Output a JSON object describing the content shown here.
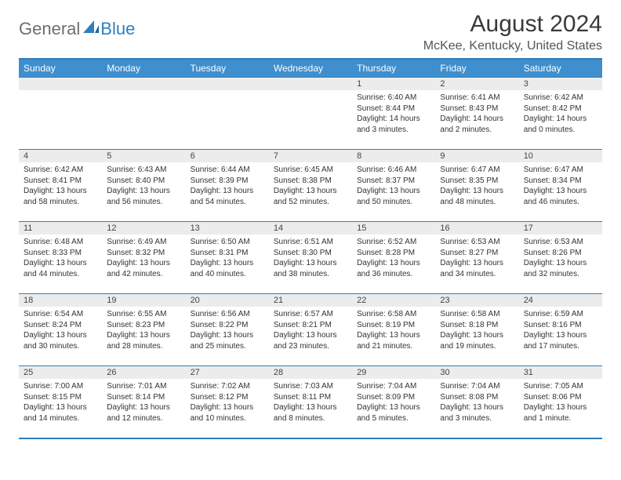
{
  "logo": {
    "general": "General",
    "blue": "Blue"
  },
  "title": "August 2024",
  "location": "McKee, Kentucky, United States",
  "colors": {
    "header_bg": "#3f8fce",
    "border": "#2f7fbf",
    "daynum_bg": "#ececec",
    "text": "#333333"
  },
  "weekdays": [
    "Sunday",
    "Monday",
    "Tuesday",
    "Wednesday",
    "Thursday",
    "Friday",
    "Saturday"
  ],
  "weeks": [
    [
      {
        "n": "",
        "sr": "",
        "ss": "",
        "dl": ""
      },
      {
        "n": "",
        "sr": "",
        "ss": "",
        "dl": ""
      },
      {
        "n": "",
        "sr": "",
        "ss": "",
        "dl": ""
      },
      {
        "n": "",
        "sr": "",
        "ss": "",
        "dl": ""
      },
      {
        "n": "1",
        "sr": "Sunrise: 6:40 AM",
        "ss": "Sunset: 8:44 PM",
        "dl": "Daylight: 14 hours and 3 minutes."
      },
      {
        "n": "2",
        "sr": "Sunrise: 6:41 AM",
        "ss": "Sunset: 8:43 PM",
        "dl": "Daylight: 14 hours and 2 minutes."
      },
      {
        "n": "3",
        "sr": "Sunrise: 6:42 AM",
        "ss": "Sunset: 8:42 PM",
        "dl": "Daylight: 14 hours and 0 minutes."
      }
    ],
    [
      {
        "n": "4",
        "sr": "Sunrise: 6:42 AM",
        "ss": "Sunset: 8:41 PM",
        "dl": "Daylight: 13 hours and 58 minutes."
      },
      {
        "n": "5",
        "sr": "Sunrise: 6:43 AM",
        "ss": "Sunset: 8:40 PM",
        "dl": "Daylight: 13 hours and 56 minutes."
      },
      {
        "n": "6",
        "sr": "Sunrise: 6:44 AM",
        "ss": "Sunset: 8:39 PM",
        "dl": "Daylight: 13 hours and 54 minutes."
      },
      {
        "n": "7",
        "sr": "Sunrise: 6:45 AM",
        "ss": "Sunset: 8:38 PM",
        "dl": "Daylight: 13 hours and 52 minutes."
      },
      {
        "n": "8",
        "sr": "Sunrise: 6:46 AM",
        "ss": "Sunset: 8:37 PM",
        "dl": "Daylight: 13 hours and 50 minutes."
      },
      {
        "n": "9",
        "sr": "Sunrise: 6:47 AM",
        "ss": "Sunset: 8:35 PM",
        "dl": "Daylight: 13 hours and 48 minutes."
      },
      {
        "n": "10",
        "sr": "Sunrise: 6:47 AM",
        "ss": "Sunset: 8:34 PM",
        "dl": "Daylight: 13 hours and 46 minutes."
      }
    ],
    [
      {
        "n": "11",
        "sr": "Sunrise: 6:48 AM",
        "ss": "Sunset: 8:33 PM",
        "dl": "Daylight: 13 hours and 44 minutes."
      },
      {
        "n": "12",
        "sr": "Sunrise: 6:49 AM",
        "ss": "Sunset: 8:32 PM",
        "dl": "Daylight: 13 hours and 42 minutes."
      },
      {
        "n": "13",
        "sr": "Sunrise: 6:50 AM",
        "ss": "Sunset: 8:31 PM",
        "dl": "Daylight: 13 hours and 40 minutes."
      },
      {
        "n": "14",
        "sr": "Sunrise: 6:51 AM",
        "ss": "Sunset: 8:30 PM",
        "dl": "Daylight: 13 hours and 38 minutes."
      },
      {
        "n": "15",
        "sr": "Sunrise: 6:52 AM",
        "ss": "Sunset: 8:28 PM",
        "dl": "Daylight: 13 hours and 36 minutes."
      },
      {
        "n": "16",
        "sr": "Sunrise: 6:53 AM",
        "ss": "Sunset: 8:27 PM",
        "dl": "Daylight: 13 hours and 34 minutes."
      },
      {
        "n": "17",
        "sr": "Sunrise: 6:53 AM",
        "ss": "Sunset: 8:26 PM",
        "dl": "Daylight: 13 hours and 32 minutes."
      }
    ],
    [
      {
        "n": "18",
        "sr": "Sunrise: 6:54 AM",
        "ss": "Sunset: 8:24 PM",
        "dl": "Daylight: 13 hours and 30 minutes."
      },
      {
        "n": "19",
        "sr": "Sunrise: 6:55 AM",
        "ss": "Sunset: 8:23 PM",
        "dl": "Daylight: 13 hours and 28 minutes."
      },
      {
        "n": "20",
        "sr": "Sunrise: 6:56 AM",
        "ss": "Sunset: 8:22 PM",
        "dl": "Daylight: 13 hours and 25 minutes."
      },
      {
        "n": "21",
        "sr": "Sunrise: 6:57 AM",
        "ss": "Sunset: 8:21 PM",
        "dl": "Daylight: 13 hours and 23 minutes."
      },
      {
        "n": "22",
        "sr": "Sunrise: 6:58 AM",
        "ss": "Sunset: 8:19 PM",
        "dl": "Daylight: 13 hours and 21 minutes."
      },
      {
        "n": "23",
        "sr": "Sunrise: 6:58 AM",
        "ss": "Sunset: 8:18 PM",
        "dl": "Daylight: 13 hours and 19 minutes."
      },
      {
        "n": "24",
        "sr": "Sunrise: 6:59 AM",
        "ss": "Sunset: 8:16 PM",
        "dl": "Daylight: 13 hours and 17 minutes."
      }
    ],
    [
      {
        "n": "25",
        "sr": "Sunrise: 7:00 AM",
        "ss": "Sunset: 8:15 PM",
        "dl": "Daylight: 13 hours and 14 minutes."
      },
      {
        "n": "26",
        "sr": "Sunrise: 7:01 AM",
        "ss": "Sunset: 8:14 PM",
        "dl": "Daylight: 13 hours and 12 minutes."
      },
      {
        "n": "27",
        "sr": "Sunrise: 7:02 AM",
        "ss": "Sunset: 8:12 PM",
        "dl": "Daylight: 13 hours and 10 minutes."
      },
      {
        "n": "28",
        "sr": "Sunrise: 7:03 AM",
        "ss": "Sunset: 8:11 PM",
        "dl": "Daylight: 13 hours and 8 minutes."
      },
      {
        "n": "29",
        "sr": "Sunrise: 7:04 AM",
        "ss": "Sunset: 8:09 PM",
        "dl": "Daylight: 13 hours and 5 minutes."
      },
      {
        "n": "30",
        "sr": "Sunrise: 7:04 AM",
        "ss": "Sunset: 8:08 PM",
        "dl": "Daylight: 13 hours and 3 minutes."
      },
      {
        "n": "31",
        "sr": "Sunrise: 7:05 AM",
        "ss": "Sunset: 8:06 PM",
        "dl": "Daylight: 13 hours and 1 minute."
      }
    ]
  ]
}
